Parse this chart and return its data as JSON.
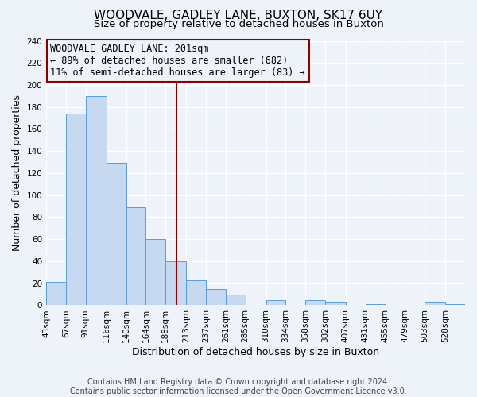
{
  "title": "WOODVALE, GADLEY LANE, BUXTON, SK17 6UY",
  "subtitle": "Size of property relative to detached houses in Buxton",
  "xlabel": "Distribution of detached houses by size in Buxton",
  "ylabel": "Number of detached properties",
  "bin_labels": [
    "43sqm",
    "67sqm",
    "91sqm",
    "116sqm",
    "140sqm",
    "164sqm",
    "188sqm",
    "213sqm",
    "237sqm",
    "261sqm",
    "285sqm",
    "310sqm",
    "334sqm",
    "358sqm",
    "382sqm",
    "407sqm",
    "431sqm",
    "455sqm",
    "479sqm",
    "503sqm",
    "528sqm"
  ],
  "bin_edges": [
    43,
    67,
    91,
    116,
    140,
    164,
    188,
    213,
    237,
    261,
    285,
    310,
    334,
    358,
    382,
    407,
    431,
    455,
    479,
    503,
    528,
    552
  ],
  "bar_heights": [
    21,
    174,
    190,
    129,
    89,
    60,
    40,
    23,
    15,
    10,
    0,
    5,
    0,
    5,
    3,
    0,
    1,
    0,
    0,
    3,
    1
  ],
  "bar_color": "#c6d9f0",
  "bar_edge_color": "#5b9bd5",
  "property_size": 201,
  "vline_color": "#8b0000",
  "annotation_line1": "WOODVALE GADLEY LANE: 201sqm",
  "annotation_line2": "← 89% of detached houses are smaller (682)",
  "annotation_line3": "11% of semi-detached houses are larger (83) →",
  "annotation_box_color": "#8b0000",
  "ylim": [
    0,
    240
  ],
  "yticks": [
    0,
    20,
    40,
    60,
    80,
    100,
    120,
    140,
    160,
    180,
    200,
    220,
    240
  ],
  "footer_line1": "Contains HM Land Registry data © Crown copyright and database right 2024.",
  "footer_line2": "Contains public sector information licensed under the Open Government Licence v3.0.",
  "background_color": "#eef2f9",
  "grid_color": "#ffffff",
  "title_fontsize": 11,
  "subtitle_fontsize": 9.5,
  "axis_label_fontsize": 9,
  "tick_fontsize": 7.5,
  "annotation_fontsize": 8.5,
  "footer_fontsize": 7
}
